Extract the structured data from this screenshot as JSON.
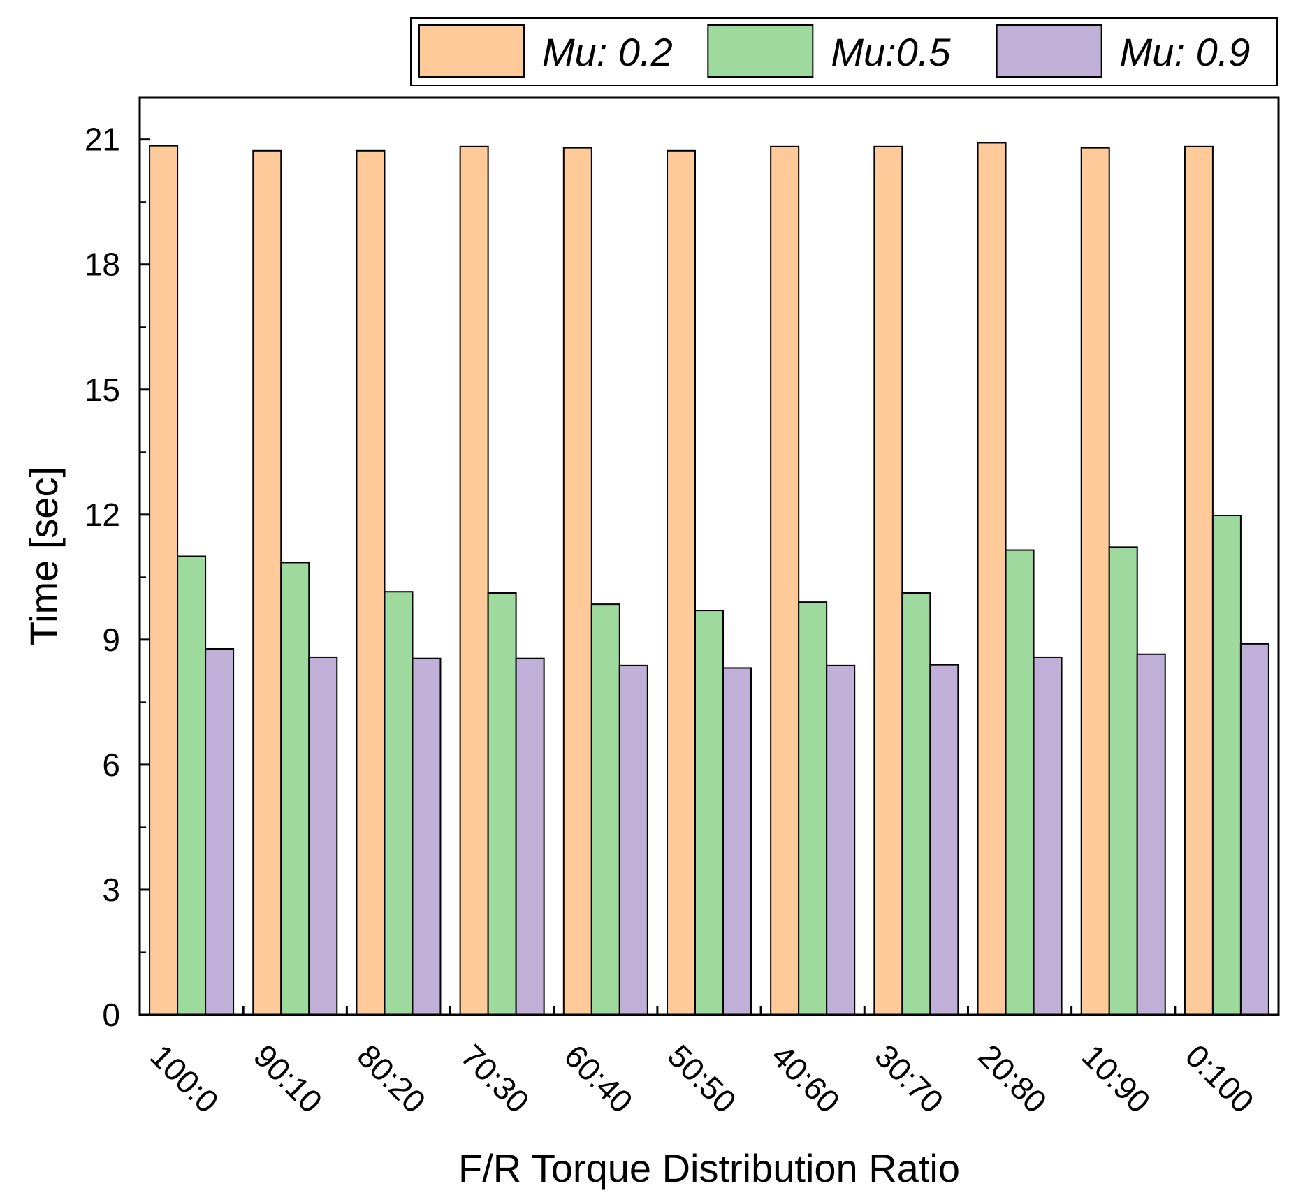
{
  "chart_data": {
    "type": "bar",
    "title": "",
    "xlabel": "F/R Torque Distribution Ratio",
    "ylabel": "Time [sec]",
    "ylim": [
      0,
      22
    ],
    "yticks": [
      0,
      3,
      6,
      9,
      12,
      15,
      18,
      21
    ],
    "categories": [
      "100:0",
      "90:10",
      "80:20",
      "70:30",
      "60:40",
      "50:50",
      "40:60",
      "30:70",
      "20:80",
      "10:90",
      "0:100"
    ],
    "series": [
      {
        "name": "Mu: 0.2",
        "color": "#FFCA99",
        "values": [
          20.85,
          20.73,
          20.73,
          20.83,
          20.8,
          20.73,
          20.83,
          20.83,
          20.92,
          20.8,
          20.83
        ]
      },
      {
        "name": "Mu:0.5",
        "color": "#9ED99E",
        "values": [
          11.0,
          10.85,
          10.15,
          10.12,
          9.85,
          9.7,
          9.9,
          10.12,
          11.15,
          11.22,
          11.98
        ]
      },
      {
        "name": "Mu: 0.9",
        "color": "#C0B0D8",
        "values": [
          8.78,
          8.58,
          8.55,
          8.55,
          8.38,
          8.32,
          8.38,
          8.4,
          8.58,
          8.65,
          8.9
        ]
      }
    ],
    "legend": "top-right",
    "grid": false
  }
}
